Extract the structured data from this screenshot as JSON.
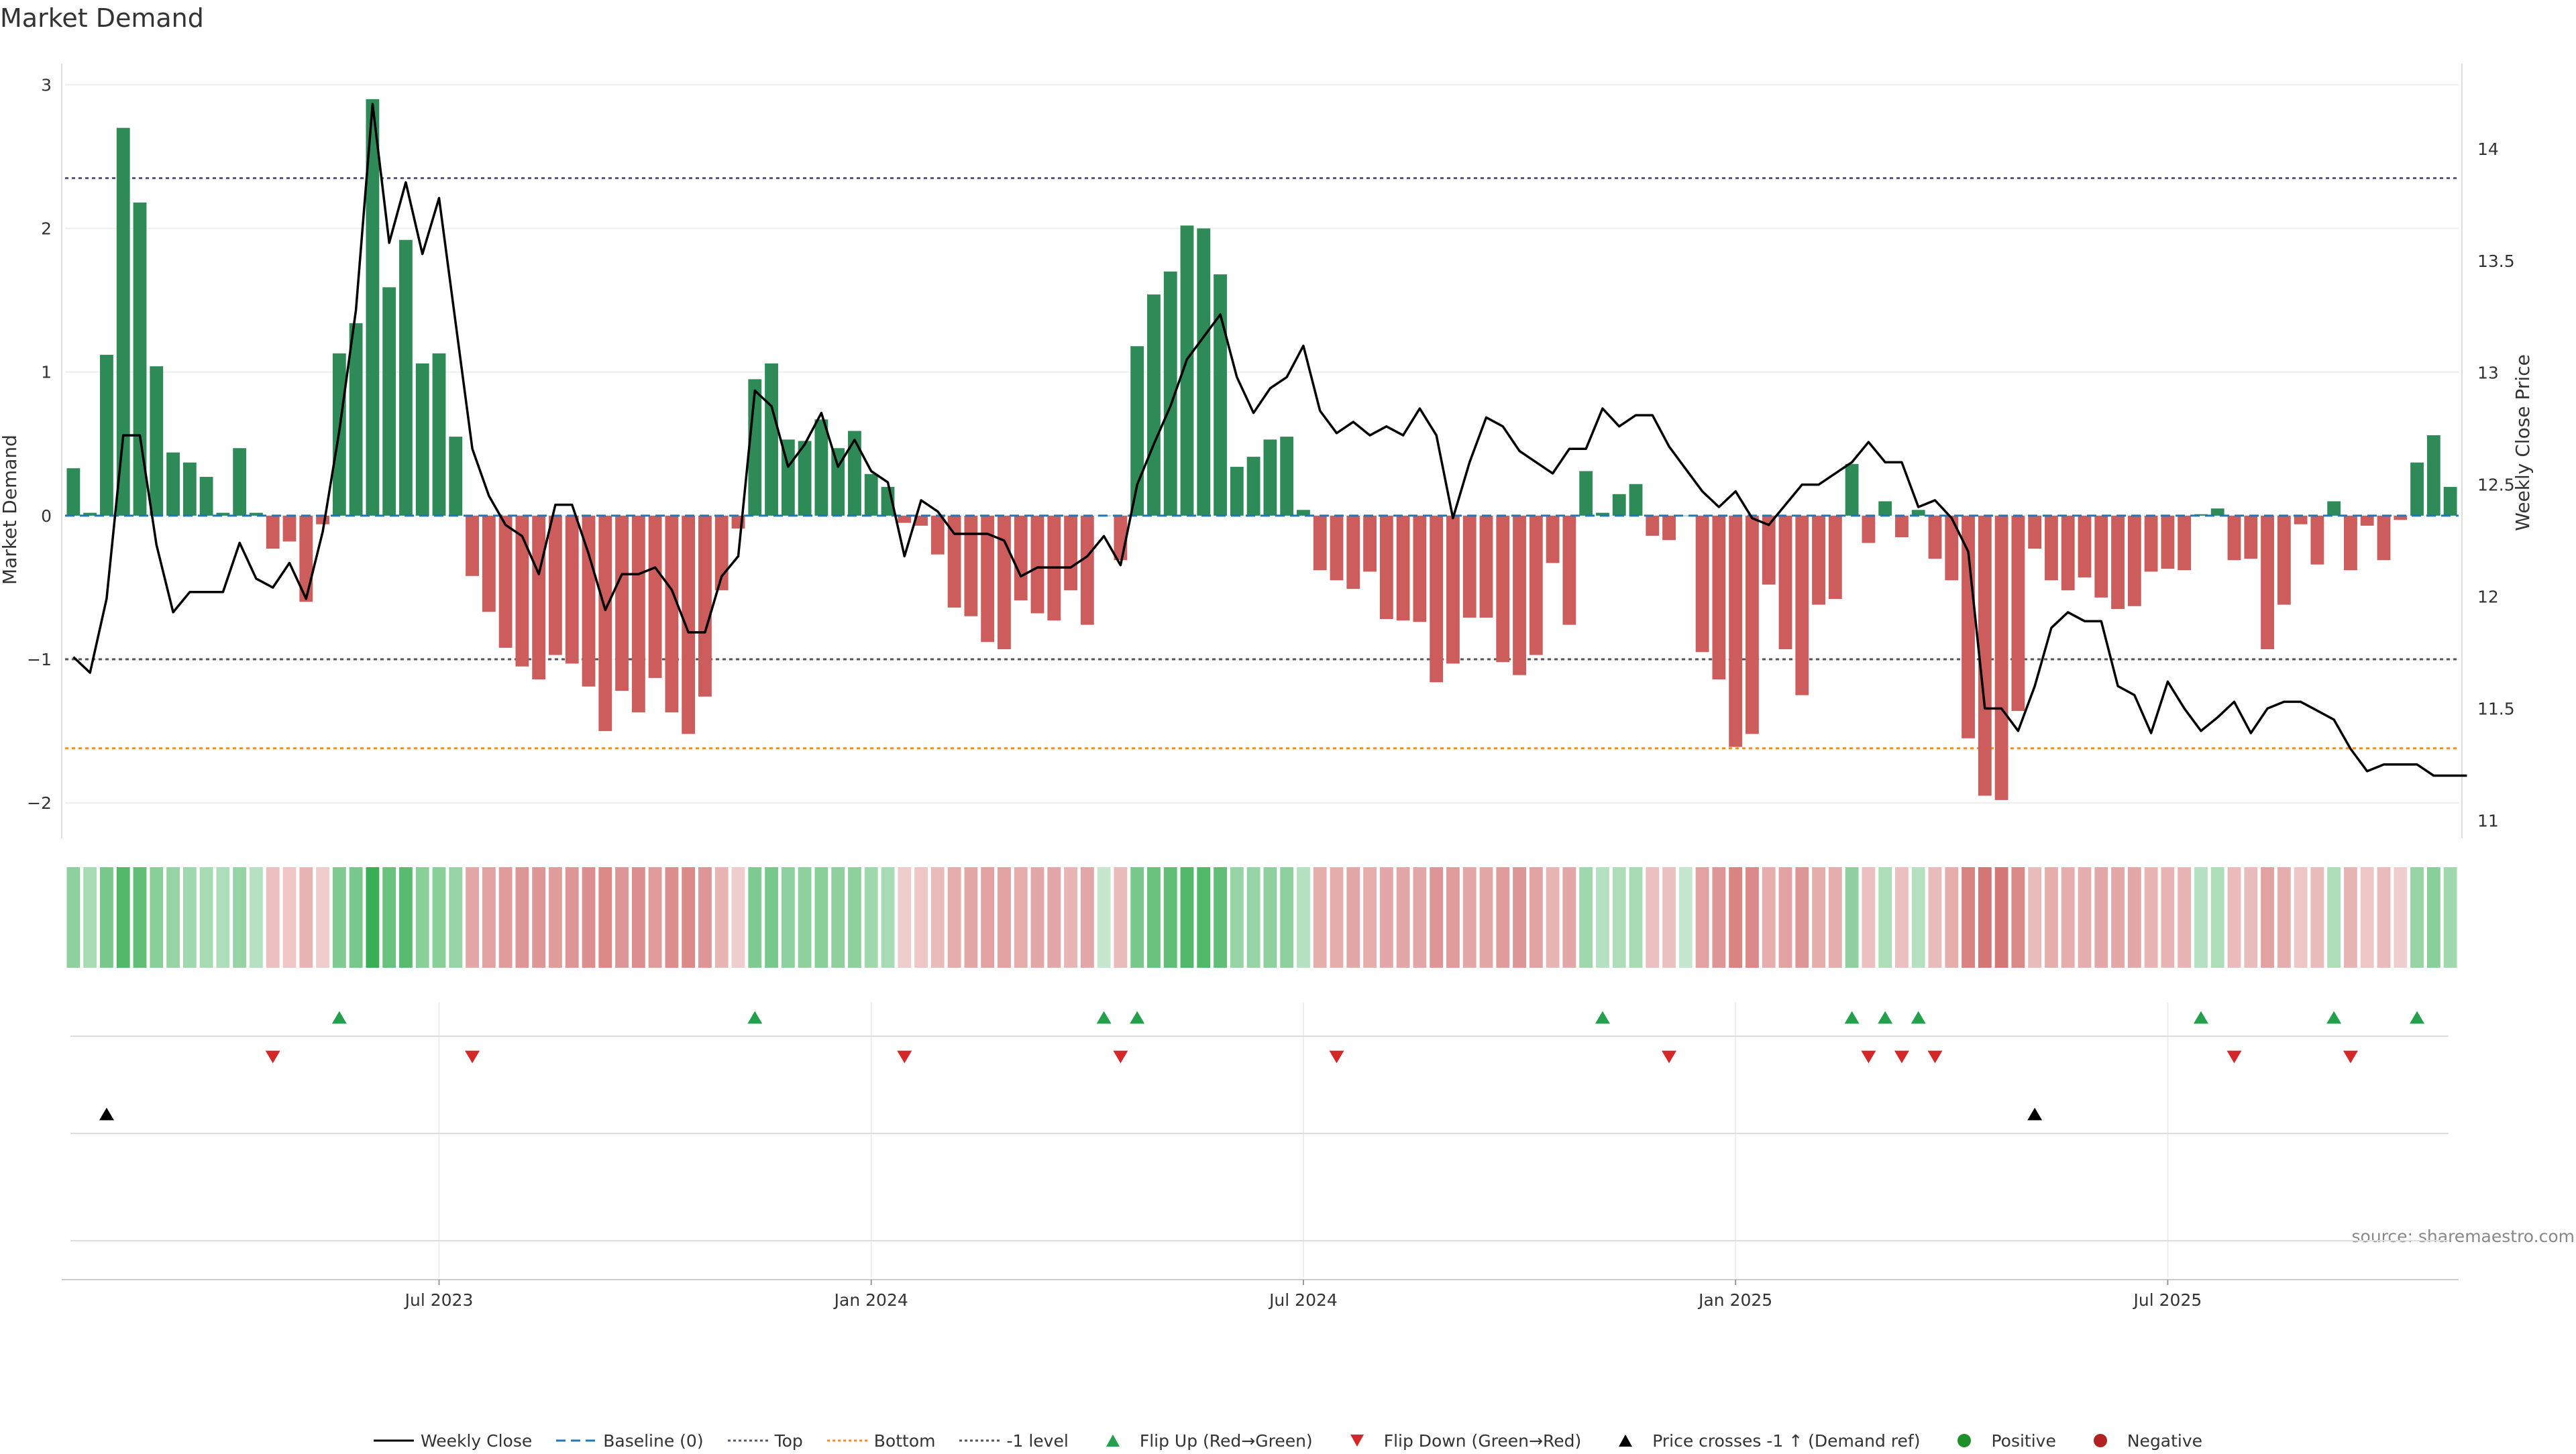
{
  "page": {
    "source_note": "source: sharemaestro.com"
  },
  "chart_data": {
    "type": "bar",
    "title": "Market Demand",
    "ylabel": "Market Demand",
    "y2label": "Weekly Close Price",
    "ylim": [
      -2.2,
      3.1
    ],
    "y2lim": [
      10.95,
      14.35
    ],
    "yticks": [
      {
        "v": 3,
        "label": "3"
      },
      {
        "v": 2,
        "label": "2"
      },
      {
        "v": 1,
        "label": "1"
      },
      {
        "v": 0,
        "label": "0"
      },
      {
        "v": -1,
        "label": "−1"
      },
      {
        "v": -2,
        "label": "−2"
      }
    ],
    "y2ticks": [
      {
        "v": 14,
        "label": "14"
      },
      {
        "v": 13.5,
        "label": "13.5"
      },
      {
        "v": 13,
        "label": "13"
      },
      {
        "v": 12.5,
        "label": "12.5"
      },
      {
        "v": 12,
        "label": "12"
      },
      {
        "v": 11.5,
        "label": "11.5"
      },
      {
        "v": 11,
        "label": "11"
      }
    ],
    "xticks": [
      {
        "index": 22,
        "label": "Jul 2023"
      },
      {
        "index": 48,
        "label": "Jan 2024"
      },
      {
        "index": 74,
        "label": "Jul 2024"
      },
      {
        "index": 100,
        "label": "Jan 2025"
      },
      {
        "index": 126,
        "label": "Jul 2025"
      }
    ],
    "reference_lines": {
      "top": 2.35,
      "bottom": -1.62,
      "minus_one": -1.0
    },
    "colors": {
      "positive": "#2e8b57",
      "negative": "#cd5c5c",
      "price": "#000000",
      "baseline": "#1f77b4",
      "top": "#555577",
      "bottom": "#ff8c1a",
      "minus_one": "#555555",
      "flip_up": "#22a04b",
      "flip_down": "#d62728",
      "price_cross": "#000000",
      "positive_dot": "#1f8f2a",
      "negative_dot": "#b22222"
    },
    "series": [
      {
        "name": "Market Demand",
        "values": [
          0.33,
          0.02,
          1.12,
          2.7,
          2.18,
          1.04,
          0.44,
          0.37,
          0.27,
          0.02,
          0.47,
          0.02,
          -0.23,
          -0.18,
          -0.6,
          -0.06,
          1.13,
          1.34,
          2.9,
          1.59,
          1.92,
          1.06,
          1.13,
          0.55,
          -0.42,
          -0.67,
          -0.92,
          -1.05,
          -1.14,
          -0.97,
          -1.03,
          -1.19,
          -1.5,
          -1.22,
          -1.37,
          -1.13,
          -1.37,
          -1.52,
          -1.26,
          -0.52,
          -0.09,
          0.95,
          1.06,
          0.53,
          0.52,
          0.67,
          0.47,
          0.59,
          0.29,
          0.2,
          -0.05,
          -0.07,
          -0.27,
          -0.64,
          -0.7,
          -0.88,
          -0.93,
          -0.59,
          -0.68,
          -0.73,
          -0.52,
          -0.76,
          0.0,
          -0.31,
          1.18,
          1.54,
          1.7,
          2.02,
          2.0,
          1.68,
          0.34,
          0.41,
          0.53,
          0.55,
          0.04,
          -0.38,
          -0.45,
          -0.51,
          -0.39,
          -0.72,
          -0.73,
          -0.74,
          -1.16,
          -1.03,
          -0.71,
          -0.71,
          -1.02,
          -1.11,
          -0.97,
          -0.33,
          -0.76,
          0.31,
          0.02,
          0.15,
          0.22,
          -0.14,
          -0.17,
          0.0,
          -0.95,
          -1.14,
          -1.61,
          -1.52,
          -0.48,
          -0.93,
          -1.25,
          -0.62,
          -0.58,
          0.36,
          -0.19,
          0.1,
          -0.15,
          0.04,
          -0.3,
          -0.45,
          -1.55,
          -1.95,
          -1.98,
          -1.36,
          -0.23,
          -0.45,
          -0.52,
          -0.43,
          -0.57,
          -0.65,
          -0.63,
          -0.39,
          -0.37,
          -0.38,
          0.01,
          0.05,
          -0.31,
          -0.3,
          -0.93,
          -0.62,
          -0.06,
          -0.34,
          0.1,
          -0.38,
          -0.07,
          -0.31,
          -0.03,
          0.37,
          0.56,
          0.2
        ]
      },
      {
        "name": "Weekly Close",
        "values": [
          11.73,
          11.66,
          11.99,
          12.72,
          12.72,
          12.23,
          11.93,
          12.02,
          12.02,
          12.02,
          12.24,
          12.08,
          12.04,
          12.15,
          11.99,
          12.29,
          12.74,
          13.28,
          14.2,
          13.58,
          13.85,
          13.53,
          13.78,
          13.22,
          12.66,
          12.45,
          12.32,
          12.27,
          12.1,
          12.41,
          12.41,
          12.19,
          11.94,
          12.1,
          12.1,
          12.13,
          12.03,
          11.84,
          11.84,
          12.09,
          12.18,
          12.92,
          12.85,
          12.58,
          12.68,
          12.82,
          12.58,
          12.7,
          12.56,
          12.51,
          12.18,
          12.43,
          12.38,
          12.28,
          12.28,
          12.28,
          12.25,
          12.09,
          12.13,
          12.13,
          12.13,
          12.18,
          12.27,
          12.14,
          12.5,
          12.68,
          12.85,
          13.06,
          13.16,
          13.26,
          12.98,
          12.82,
          12.93,
          12.98,
          13.12,
          12.83,
          12.73,
          12.78,
          12.72,
          12.76,
          12.72,
          12.84,
          12.72,
          12.35,
          12.6,
          12.8,
          12.76,
          12.65,
          12.6,
          12.55,
          12.66,
          12.66,
          12.84,
          12.76,
          12.81,
          12.81,
          12.67,
          12.57,
          12.47,
          12.4,
          12.47,
          12.35,
          12.32,
          12.41,
          12.5,
          12.5,
          12.55,
          12.6,
          12.69,
          12.6,
          12.6,
          12.4,
          12.43,
          12.35,
          12.2,
          11.5,
          11.5,
          11.4,
          11.6,
          11.86,
          11.93,
          11.89,
          11.89,
          11.6,
          11.56,
          11.39,
          11.62,
          11.5,
          11.4,
          11.46,
          11.53,
          11.39,
          11.5,
          11.53,
          11.53,
          11.49,
          11.45,
          11.32,
          11.22,
          11.25,
          11.25,
          11.25,
          11.2,
          11.2,
          11.2
        ]
      }
    ],
    "band_intensity": [
      0.45,
      0.3,
      0.6,
      0.85,
      0.75,
      0.5,
      0.4,
      0.35,
      0.3,
      0.25,
      0.4,
      0.2,
      0.25,
      0.2,
      0.35,
      0.15,
      0.55,
      0.6,
      1.0,
      0.7,
      0.8,
      0.5,
      0.5,
      0.4,
      0.45,
      0.5,
      0.55,
      0.6,
      0.6,
      0.55,
      0.6,
      0.65,
      0.7,
      0.6,
      0.65,
      0.55,
      0.65,
      0.7,
      0.6,
      0.35,
      0.15,
      0.55,
      0.6,
      0.45,
      0.45,
      0.5,
      0.45,
      0.45,
      0.35,
      0.3,
      0.15,
      0.2,
      0.3,
      0.4,
      0.45,
      0.5,
      0.5,
      0.4,
      0.45,
      0.45,
      0.35,
      0.45,
      0.1,
      0.3,
      0.6,
      0.7,
      0.75,
      0.85,
      0.85,
      0.75,
      0.4,
      0.4,
      0.45,
      0.45,
      0.2,
      0.4,
      0.4,
      0.45,
      0.4,
      0.45,
      0.45,
      0.45,
      0.6,
      0.55,
      0.45,
      0.45,
      0.55,
      0.6,
      0.5,
      0.35,
      0.45,
      0.35,
      0.2,
      0.25,
      0.3,
      0.25,
      0.25,
      0.1,
      0.5,
      0.6,
      0.75,
      0.7,
      0.4,
      0.5,
      0.6,
      0.4,
      0.4,
      0.45,
      0.25,
      0.25,
      0.25,
      0.2,
      0.3,
      0.4,
      0.75,
      0.85,
      0.85,
      0.7,
      0.3,
      0.4,
      0.4,
      0.4,
      0.45,
      0.45,
      0.45,
      0.35,
      0.35,
      0.35,
      0.2,
      0.25,
      0.3,
      0.3,
      0.5,
      0.4,
      0.2,
      0.3,
      0.25,
      0.35,
      0.2,
      0.3,
      0.15,
      0.4,
      0.5,
      0.35
    ],
    "flip_up_indices": [
      16,
      41,
      62,
      64,
      92,
      107,
      109,
      111,
      128,
      136,
      141
    ],
    "flip_down_indices": [
      12,
      24,
      50,
      63,
      76,
      96,
      108,
      110,
      112,
      130,
      137
    ],
    "price_cross_indices": [
      2,
      118
    ],
    "legend": [
      {
        "key": "weekly_close",
        "label": "Weekly Close",
        "kind": "line"
      },
      {
        "key": "baseline",
        "label": "Baseline (0)",
        "kind": "dash"
      },
      {
        "key": "top",
        "label": "Top",
        "kind": "dot"
      },
      {
        "key": "bottom",
        "label": "Bottom",
        "kind": "dot-orange"
      },
      {
        "key": "minus_one",
        "label": "-1 level",
        "kind": "dot-grey"
      },
      {
        "key": "flip_up",
        "label": "Flip Up (Red→Green)",
        "kind": "tri-up-green"
      },
      {
        "key": "flip_down",
        "label": "Flip Down (Green→Red)",
        "kind": "tri-down-red"
      },
      {
        "key": "price_cross",
        "label": "Price crosses -1 ↑ (Demand ref)",
        "kind": "tri-up-black"
      },
      {
        "key": "positive",
        "label": "Positive",
        "kind": "dot-green"
      },
      {
        "key": "negative",
        "label": "Negative",
        "kind": "dot-red"
      }
    ]
  }
}
